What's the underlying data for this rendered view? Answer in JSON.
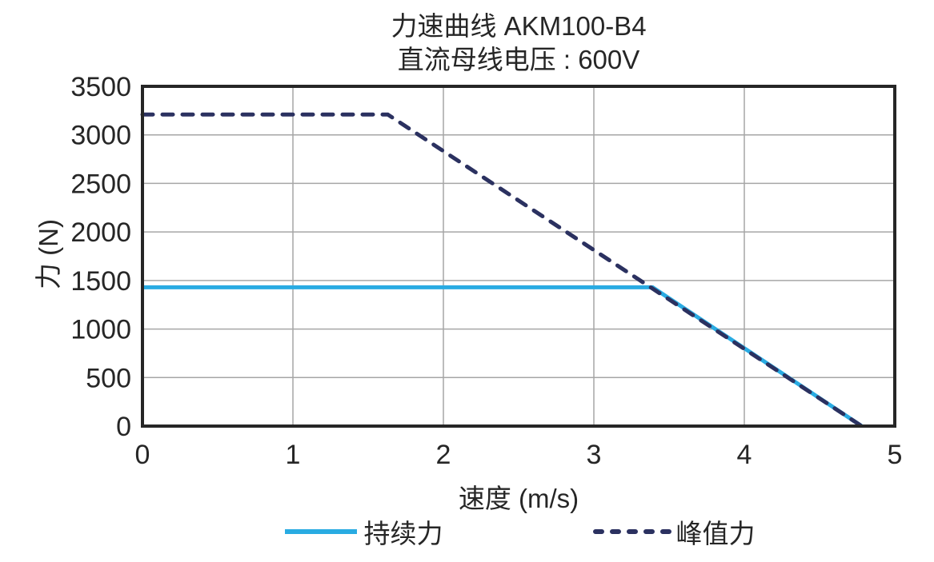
{
  "chart_data": {
    "type": "line",
    "title": "力速曲线 AKM100-B4",
    "subtitle": "直流母线电压 : 600V",
    "xlabel": "速度 (m/s)",
    "ylabel": "力 (N)",
    "xlim": [
      0,
      5
    ],
    "ylim": [
      0,
      3500
    ],
    "xticks": [
      0,
      1,
      2,
      3,
      4,
      5
    ],
    "yticks": [
      0,
      500,
      1000,
      1500,
      2000,
      2500,
      3000,
      3500
    ],
    "grid": true,
    "grid_color": "#A6A6A6",
    "border_color": "#262626",
    "text_color": "#262626",
    "legend_position": "bottom",
    "series": [
      {
        "name": "持续力",
        "line_style": "solid",
        "color": "#29ABE2",
        "stroke_width": 5,
        "points": [
          [
            0,
            1430
          ],
          [
            3.39,
            1430
          ],
          [
            4.78,
            0
          ]
        ]
      },
      {
        "name": "峰值力",
        "line_style": "dashed",
        "color": "#2B3160",
        "stroke_width": 5,
        "points": [
          [
            0,
            3210
          ],
          [
            1.63,
            3210
          ],
          [
            4.78,
            0
          ]
        ]
      }
    ]
  }
}
